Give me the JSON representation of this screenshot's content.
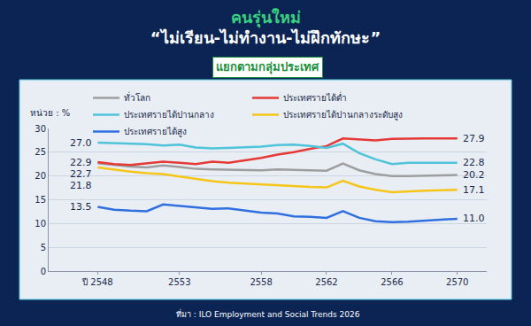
{
  "chart_data": {
    "type": "line",
    "title": [
      "คนรุ่นใหม่",
      "“ไม่เรียน-ไม่ทำงาน-ไม่ฝึกทักษะ”"
    ],
    "subtitle": "แยกตามกลุ่มประเทศ",
    "y_label": "หน่วย : %",
    "source": "ที่มา : ILO Employment and Social Trends 2026",
    "x": [
      2548,
      2549,
      2550,
      2551,
      2552,
      2553,
      2554,
      2555,
      2556,
      2557,
      2558,
      2559,
      2560,
      2561,
      2562,
      2563,
      2564,
      2565,
      2566,
      2567,
      2568,
      2569,
      2570
    ],
    "xlim": [
      2545,
      2571.8
    ],
    "xticks": [
      {
        "value": 2548,
        "label": "ปี 2548"
      },
      2553,
      2558,
      2562,
      2566,
      2570
    ],
    "ylim": [
      0,
      30
    ],
    "yticks": [
      0,
      5,
      10,
      15,
      20,
      25,
      30
    ],
    "grid": true,
    "legend": "top",
    "series": [
      {
        "name": "ทั่วโลก",
        "color": "#9e9e9e",
        "values": [
          22.7,
          22.3,
          22.0,
          21.8,
          22.2,
          21.9,
          21.5,
          21.4,
          21.3,
          21.2,
          21.2,
          21.4,
          21.3,
          21.2,
          21.1,
          22.6,
          21.2,
          20.4,
          20.0,
          20.0,
          20.1,
          20.2,
          20.2
        ],
        "value_labels": [
          "22.7",
          null,
          null,
          null,
          null,
          null,
          null,
          null,
          null,
          null,
          null,
          null,
          null,
          null,
          null,
          null,
          null,
          null,
          null,
          null,
          null,
          null,
          "20.2"
        ]
      },
      {
        "name": "ประเทศรายได้ต่ำ",
        "color": "#e53935",
        "values": [
          22.9,
          22.5,
          22.3,
          22.6,
          23.0,
          22.8,
          22.5,
          23.0,
          22.8,
          23.3,
          23.8,
          24.5,
          25.0,
          25.7,
          26.3,
          27.9,
          27.7,
          27.5,
          27.8,
          27.9,
          27.9,
          27.9,
          27.9
        ],
        "value_labels": [
          "22.9",
          null,
          null,
          null,
          null,
          null,
          null,
          null,
          null,
          null,
          null,
          null,
          null,
          null,
          null,
          null,
          null,
          null,
          null,
          null,
          null,
          null,
          "27.9"
        ]
      },
      {
        "name": "ประเทศรายได้ปานกลาง",
        "color": "#4fc3d9",
        "values": [
          27.0,
          26.9,
          26.8,
          26.7,
          26.4,
          26.6,
          26.0,
          25.8,
          25.9,
          26.0,
          26.2,
          26.5,
          26.6,
          26.3,
          25.9,
          26.8,
          24.8,
          23.5,
          22.5,
          22.8,
          22.8,
          22.8,
          22.8
        ],
        "value_labels": [
          "27.0",
          null,
          null,
          null,
          null,
          null,
          null,
          null,
          null,
          null,
          null,
          null,
          null,
          null,
          null,
          null,
          null,
          null,
          null,
          null,
          null,
          null,
          "22.8"
        ]
      },
      {
        "name": "ประเทศรายได้ปานกลางระดับสูง",
        "color": "#f5c518",
        "values": [
          21.8,
          21.3,
          20.9,
          20.6,
          20.4,
          19.9,
          19.4,
          18.9,
          18.6,
          18.4,
          18.3,
          18.1,
          17.9,
          17.7,
          17.6,
          19.0,
          17.8,
          17.1,
          16.6,
          16.8,
          16.9,
          17.0,
          17.1
        ],
        "value_labels": [
          "21.8",
          null,
          null,
          null,
          null,
          null,
          null,
          null,
          null,
          null,
          null,
          null,
          null,
          null,
          null,
          null,
          null,
          null,
          null,
          null,
          null,
          null,
          "17.1"
        ]
      },
      {
        "name": "ประเทศรายได้สูง",
        "color": "#2f6fe0",
        "values": [
          13.5,
          12.9,
          12.7,
          12.6,
          14.0,
          13.7,
          13.4,
          13.1,
          13.2,
          12.8,
          12.3,
          12.1,
          11.5,
          11.4,
          11.2,
          12.6,
          11.2,
          10.5,
          10.3,
          10.4,
          10.6,
          10.8,
          11.0
        ],
        "value_labels": [
          "13.5",
          null,
          null,
          null,
          null,
          null,
          null,
          null,
          null,
          null,
          null,
          null,
          null,
          null,
          null,
          null,
          null,
          null,
          null,
          null,
          null,
          null,
          "11.0"
        ]
      }
    ]
  }
}
